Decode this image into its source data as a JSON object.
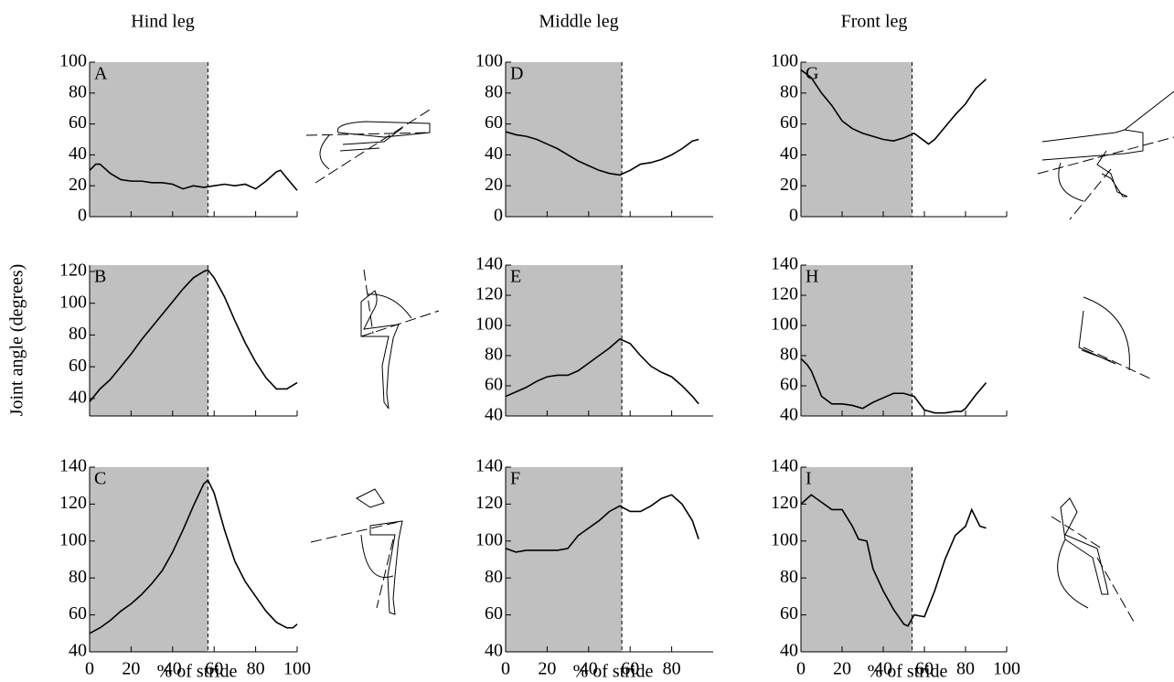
{
  "chart_data": [
    {
      "type": "line",
      "label": "A",
      "title": "Hind leg",
      "color": "#000000",
      "shade": [
        0,
        57
      ],
      "shade_color": "#c0c0c0",
      "show_xtick_labels": false,
      "x": [
        0,
        3,
        5,
        10,
        15,
        20,
        25,
        30,
        35,
        40,
        45,
        50,
        55,
        60,
        65,
        70,
        75,
        80,
        85,
        90,
        92,
        95,
        100
      ],
      "values": [
        30,
        34,
        34,
        28,
        24,
        23,
        23,
        22,
        22,
        21,
        18,
        20,
        19,
        20,
        21,
        20,
        21,
        18,
        23,
        29,
        30,
        25,
        17
      ],
      "xlim": [
        0,
        100
      ],
      "ylim": [
        0,
        100
      ],
      "xticks": [
        0,
        20,
        40,
        60,
        80,
        100
      ],
      "yticks": [
        0,
        20,
        40,
        60,
        80,
        100
      ]
    },
    {
      "type": "line",
      "label": "B",
      "ylabel": "Joint angle (degrees)",
      "color": "#000000",
      "shade": [
        0,
        57
      ],
      "shade_color": "#c0c0c0",
      "show_xtick_labels": false,
      "x": [
        0,
        5,
        10,
        15,
        20,
        25,
        30,
        35,
        40,
        45,
        50,
        55,
        57,
        60,
        65,
        70,
        75,
        80,
        85,
        90,
        95,
        100
      ],
      "values": [
        38,
        46,
        52,
        60,
        68,
        77,
        85,
        93,
        101,
        109,
        116,
        120,
        121,
        116,
        104,
        89,
        75,
        63,
        53,
        46,
        46,
        50
      ],
      "xlim": [
        0,
        100
      ],
      "ylim": [
        29,
        124
      ],
      "xticks": [
        0,
        20,
        40,
        60,
        80,
        100
      ],
      "yticks": [
        40,
        60,
        80,
        100,
        120
      ]
    },
    {
      "type": "line",
      "label": "C",
      "xlabel": "% of stride",
      "color": "#000000",
      "shade": [
        0,
        57
      ],
      "shade_color": "#c0c0c0",
      "show_xtick_labels": true,
      "x": [
        0,
        5,
        10,
        15,
        20,
        25,
        30,
        35,
        40,
        45,
        50,
        55,
        57,
        60,
        65,
        70,
        75,
        80,
        85,
        90,
        95,
        98,
        100
      ],
      "values": [
        50,
        53,
        57,
        62,
        66,
        71,
        77,
        84,
        94,
        106,
        119,
        131,
        133,
        126,
        106,
        89,
        78,
        70,
        62,
        56,
        53,
        53,
        55
      ],
      "xlim": [
        0,
        100
      ],
      "ylim": [
        40,
        140
      ],
      "xticks": [
        0,
        20,
        40,
        60,
        80,
        100
      ],
      "yticks": [
        40,
        60,
        80,
        100,
        120,
        140
      ]
    },
    {
      "type": "line",
      "label": "D",
      "title": "Middle leg",
      "color": "#000000",
      "shade": [
        0,
        56
      ],
      "shade_color": "#c0c0c0",
      "show_xtick_labels": false,
      "x": [
        0,
        5,
        10,
        15,
        20,
        25,
        30,
        35,
        40,
        45,
        50,
        55,
        60,
        65,
        70,
        75,
        80,
        85,
        90,
        93
      ],
      "values": [
        55,
        53,
        52,
        50,
        47,
        44,
        40,
        36,
        33,
        30,
        28,
        27,
        30,
        34,
        35,
        37,
        40,
        44,
        49,
        50
      ],
      "xlim": [
        0,
        100
      ],
      "ylim": [
        0,
        100
      ],
      "xticks": [
        0,
        20,
        40,
        60,
        80
      ],
      "yticks": [
        0,
        20,
        40,
        60,
        80,
        100
      ]
    },
    {
      "type": "line",
      "label": "E",
      "color": "#000000",
      "shade": [
        0,
        56
      ],
      "shade_color": "#c0c0c0",
      "show_xtick_labels": false,
      "x": [
        0,
        5,
        10,
        15,
        20,
        25,
        30,
        35,
        40,
        45,
        50,
        55,
        60,
        65,
        70,
        75,
        80,
        85,
        90,
        93
      ],
      "values": [
        53,
        56,
        59,
        63,
        66,
        67,
        67,
        70,
        75,
        80,
        85,
        91,
        88,
        80,
        73,
        69,
        66,
        60,
        53,
        48
      ],
      "xlim": [
        0,
        100
      ],
      "ylim": [
        40,
        140
      ],
      "xticks": [
        0,
        20,
        40,
        60,
        80
      ],
      "yticks": [
        40,
        60,
        80,
        100,
        120,
        140
      ]
    },
    {
      "type": "line",
      "label": "F",
      "xlabel": "% of stride",
      "color": "#000000",
      "shade": [
        0,
        56
      ],
      "shade_color": "#c0c0c0",
      "show_xtick_labels": true,
      "x": [
        0,
        5,
        10,
        15,
        20,
        25,
        30,
        35,
        40,
        45,
        50,
        55,
        60,
        65,
        70,
        75,
        80,
        85,
        90,
        93
      ],
      "values": [
        96,
        94,
        95,
        95,
        95,
        95,
        96,
        103,
        107,
        111,
        116,
        119,
        116,
        116,
        119,
        123,
        125,
        120,
        111,
        101
      ],
      "xlim": [
        0,
        100
      ],
      "ylim": [
        40,
        140
      ],
      "xticks": [
        0,
        20,
        40,
        60,
        80
      ],
      "yticks": [
        40,
        60,
        80,
        100,
        120,
        140
      ]
    },
    {
      "type": "line",
      "label": "G",
      "title": "Front leg",
      "color": "#000000",
      "shade": [
        0,
        54
      ],
      "shade_color": "#c0c0c0",
      "show_xtick_labels": false,
      "x": [
        0,
        5,
        10,
        15,
        20,
        25,
        30,
        35,
        40,
        45,
        50,
        55,
        60,
        62,
        65,
        70,
        75,
        80,
        85,
        90
      ],
      "values": [
        95,
        90,
        80,
        72,
        62,
        57,
        54,
        52,
        50,
        49,
        51,
        54,
        49,
        47,
        50,
        58,
        66,
        73,
        83,
        89
      ],
      "xlim": [
        0,
        100
      ],
      "ylim": [
        0,
        100
      ],
      "xticks": [
        0,
        20,
        40,
        60,
        80,
        100
      ],
      "yticks": [
        0,
        20,
        40,
        60,
        80,
        100
      ]
    },
    {
      "type": "line",
      "label": "H",
      "color": "#000000",
      "shade": [
        0,
        54
      ],
      "shade_color": "#c0c0c0",
      "show_xtick_labels": false,
      "x": [
        0,
        3,
        5,
        8,
        10,
        15,
        20,
        25,
        30,
        35,
        40,
        45,
        50,
        55,
        60,
        65,
        70,
        75,
        78,
        80,
        85,
        90
      ],
      "values": [
        78,
        74,
        70,
        60,
        53,
        48,
        48,
        47,
        45,
        49,
        52,
        55,
        55,
        53,
        44,
        42,
        42,
        43,
        43,
        45,
        54,
        62
      ],
      "xlim": [
        0,
        100
      ],
      "ylim": [
        40,
        140
      ],
      "xticks": [
        0,
        20,
        40,
        60,
        80,
        100
      ],
      "yticks": [
        40,
        60,
        80,
        100,
        120,
        140
      ]
    },
    {
      "type": "line",
      "label": "I",
      "xlabel": "% of stride",
      "color": "#000000",
      "shade": [
        0,
        54
      ],
      "shade_color": "#c0c0c0",
      "show_xtick_labels": true,
      "x": [
        0,
        5,
        10,
        15,
        20,
        25,
        28,
        32,
        35,
        40,
        45,
        50,
        52,
        55,
        60,
        65,
        70,
        75,
        80,
        83,
        87,
        90
      ],
      "values": [
        120,
        125,
        121,
        117,
        117,
        108,
        101,
        100,
        85,
        73,
        63,
        55,
        54,
        60,
        59,
        73,
        90,
        103,
        108,
        117,
        108,
        107
      ],
      "xlim": [
        0,
        100
      ],
      "ylim": [
        40,
        140
      ],
      "xticks": [
        0,
        20,
        40,
        60,
        80,
        100
      ],
      "yticks": [
        40,
        60,
        80,
        100,
        120,
        140
      ]
    }
  ]
}
